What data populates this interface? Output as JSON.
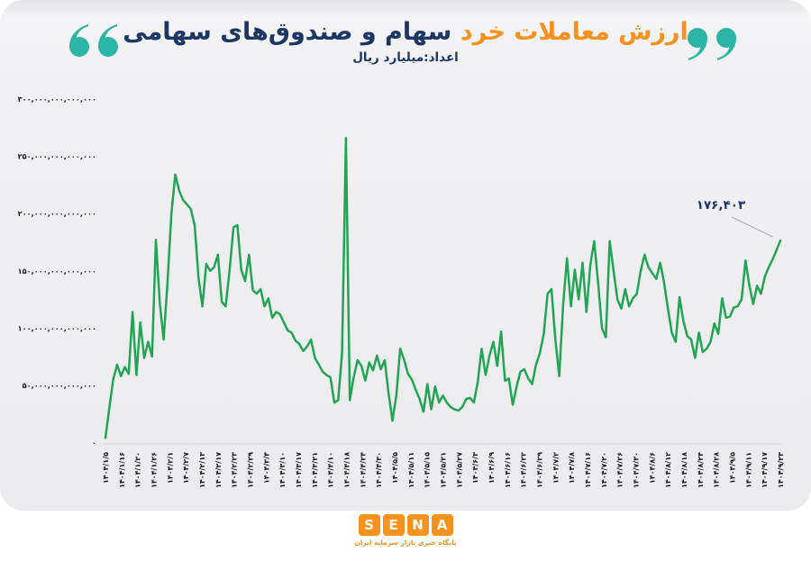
{
  "header": {
    "title_highlight": "ارزش معاملات خرد",
    "title_rest": "سهام و صندوق‌های سهامی",
    "subtitle": "اعداد:میلیارد ریال"
  },
  "colors": {
    "accent_orange": "#f5911e",
    "navy": "#1c3765",
    "teal_quote": "#2cb5a4",
    "line_green": "#23a455",
    "axis_text": "#15151f",
    "leader_gray": "#a9a9ad",
    "card_gray": "#eeeeef",
    "logo_orange": "#f6921e"
  },
  "chart_data": {
    "type": "line",
    "title": "ارزش معاملات خرد سهام و صندوق‌های سهامی",
    "unit_note": "اعداد:میلیارد ریال",
    "xlabel": "",
    "ylabel": "",
    "grid": false,
    "legend": false,
    "y_axis": {
      "min": 0,
      "max": 300000000000000,
      "tick_step": 50000000000000,
      "tick_labels": [
        "۳۰۰,۰۰۰,۰۰۰,۰۰۰,۰۰۰",
        "۲۵۰,۰۰۰,۰۰۰,۰۰۰,۰۰۰",
        "۲۰۰,۰۰۰,۰۰۰,۰۰۰,۰۰۰",
        "۱۵۰,۰۰۰,۰۰۰,۰۰۰,۰۰۰",
        "۱۰۰,۰۰۰,۰۰۰,۰۰۰,۰۰۰",
        "۵۰,۰۰۰,۰۰۰,۰۰۰,۰۰۰",
        "۰"
      ]
    },
    "x_tick_labels": [
      "۱۴۰۴/۱/۵",
      "۱۴۰۴/۱/۱۶",
      "۱۴۰۴/۱/۲۰",
      "۱۴۰۴/۱/۲۶",
      "۱۴۰۴/۲/۱",
      "۱۴۰۴/۲/۷",
      "۱۴۰۴/۲/۱۳",
      "۱۴۰۴/۲/۱۷",
      "۱۴۰۴/۲/۲۳",
      "۱۴۰۴/۲/۲۹",
      "۱۴۰۴/۳/۴",
      "۱۴۰۴/۳/۱۰",
      "۱۴۰۴/۳/۱۷",
      "۱۴۰۴/۳/۲۱",
      "۱۴۰۴/۴/۱۰",
      "۱۴۰۴/۴/۱۸",
      "۱۴۰۴/۴/۲۴",
      "۱۴۰۴/۴/۳۰",
      "۱۴۰۴/۵/۵",
      "۱۴۰۴/۵/۱۱",
      "۱۴۰۴/۵/۱۵",
      "۱۴۰۴/۵/۲۱",
      "۱۴۰۴/۵/۲۷",
      "۱۴۰۴/۶/۳",
      "۱۴۰۴/۶/۹",
      "۱۴۰۴/۶/۱۶",
      "۱۴۰۴/۶/۲۲",
      "۱۴۰۴/۶/۲۹",
      "۱۴۰۴/۷/۲",
      "۱۴۰۴/۷/۸",
      "۱۴۰۴/۷/۱۶",
      "۱۴۰۴/۷/۲۰",
      "۱۴۰۴/۷/۲۶",
      "۱۴۰۴/۷/۳۰",
      "۱۴۰۴/۸/۶",
      "۱۴۰۴/۸/۱۲",
      "۱۴۰۴/۸/۱۸",
      "۱۴۰۴/۸/۲۴",
      "۱۴۰۴/۸/۲۸",
      "۱۴۰۴/۹/۵",
      "۱۴۰۴/۹/۱۱",
      "۱۴۰۴/۹/۱۷",
      "۱۴۰۴/۹/۲۳"
    ],
    "series": [
      {
        "name": "ارزش معاملات خرد (میلیارد ریال)",
        "color": "#23a455",
        "values": [
          4000,
          30000,
          55000,
          68000,
          58000,
          66000,
          60000,
          114000,
          59000,
          105000,
          74000,
          88000,
          75000,
          177000,
          122000,
          90000,
          140000,
          200000,
          234000,
          220000,
          212000,
          208000,
          204000,
          190000,
          144000,
          119000,
          156000,
          150000,
          153000,
          164000,
          123000,
          119000,
          150000,
          188000,
          190000,
          151000,
          141000,
          164000,
          133000,
          130000,
          134000,
          119000,
          126000,
          109000,
          114000,
          112000,
          105000,
          98000,
          96000,
          89000,
          86000,
          80000,
          84000,
          90000,
          74000,
          68000,
          62000,
          59000,
          57000,
          35000,
          37000,
          78000,
          266000,
          37000,
          57000,
          72000,
          67000,
          54000,
          70000,
          63000,
          76000,
          64000,
          72000,
          43000,
          19000,
          41000,
          82000,
          72000,
          60000,
          55000,
          46000,
          38000,
          27000,
          51000,
          29000,
          49000,
          35000,
          41000,
          35000,
          31000,
          29000,
          28000,
          31000,
          38000,
          39000,
          35000,
          53000,
          82000,
          59000,
          76000,
          88000,
          67000,
          97000,
          54000,
          56000,
          33000,
          49000,
          62000,
          64000,
          56000,
          51000,
          68000,
          78000,
          95000,
          130000,
          134000,
          90000,
          58000,
          120000,
          161000,
          119000,
          151000,
          125000,
          157000,
          114000,
          155000,
          176000,
          140000,
          100000,
          92000,
          176000,
          150000,
          125000,
          117000,
          134000,
          119000,
          126000,
          130000,
          150000,
          164000,
          153000,
          148000,
          143000,
          157000,
          140000,
          117000,
          96000,
          88000,
          127000,
          106000,
          93000,
          90000,
          74000,
          96000,
          79000,
          82000,
          88000,
          104000,
          95000,
          126000,
          109000,
          110000,
          118000,
          119000,
          125000,
          159000,
          137000,
          121000,
          137000,
          130000,
          145000,
          153000,
          160000,
          168000,
          176403
        ]
      }
    ],
    "annotation": {
      "label": "۱۷۶,۴۰۳",
      "value": 176403,
      "attached_to": "last-point"
    }
  },
  "footer": {
    "logo_letters": [
      "S",
      "E",
      "N",
      "A"
    ],
    "logo_tagline": "پایگاه خبری بازار سرمایه ایران"
  }
}
